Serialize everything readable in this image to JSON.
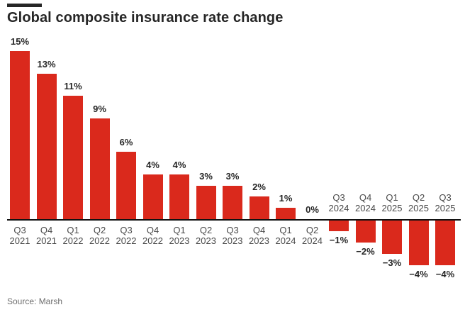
{
  "title_block": {
    "title": "Global composite insurance rate change"
  },
  "chart_data": {
    "type": "bar",
    "title": "Global composite insurance rate change",
    "categories": [
      "Q3 2021",
      "Q4 2021",
      "Q1 2022",
      "Q2 2022",
      "Q3 2022",
      "Q4 2022",
      "Q1 2023",
      "Q2 2023",
      "Q3 2023",
      "Q4 2023",
      "Q1 2024",
      "Q2 2024",
      "Q3 2024",
      "Q4 2024",
      "Q1 2025",
      "Q2 2025",
      "Q3 2025"
    ],
    "values": [
      15,
      13,
      11,
      9,
      6,
      4,
      4,
      3,
      3,
      2,
      1,
      0,
      -1,
      -2,
      -3,
      -4,
      -4
    ],
    "value_labels": [
      "15%",
      "13%",
      "11%",
      "9%",
      "6%",
      "4%",
      "4%",
      "3%",
      "3%",
      "2%",
      "1%",
      "0%",
      "−1%",
      "−2%",
      "−3%",
      "−4%",
      "−4%"
    ],
    "xlabel": "",
    "ylabel": "",
    "ylim": [
      -5,
      16
    ],
    "grid": false,
    "legend": "none",
    "bar_color": "#da291c"
  },
  "colors": {
    "bar": "#da291c",
    "title": "#262626",
    "axis": "#111111",
    "category_label": "#4a4a4a",
    "value_label": "#262626",
    "source": "#6e6e6e",
    "background": "#ffffff"
  },
  "footer": {
    "source": "Source: Marsh"
  }
}
